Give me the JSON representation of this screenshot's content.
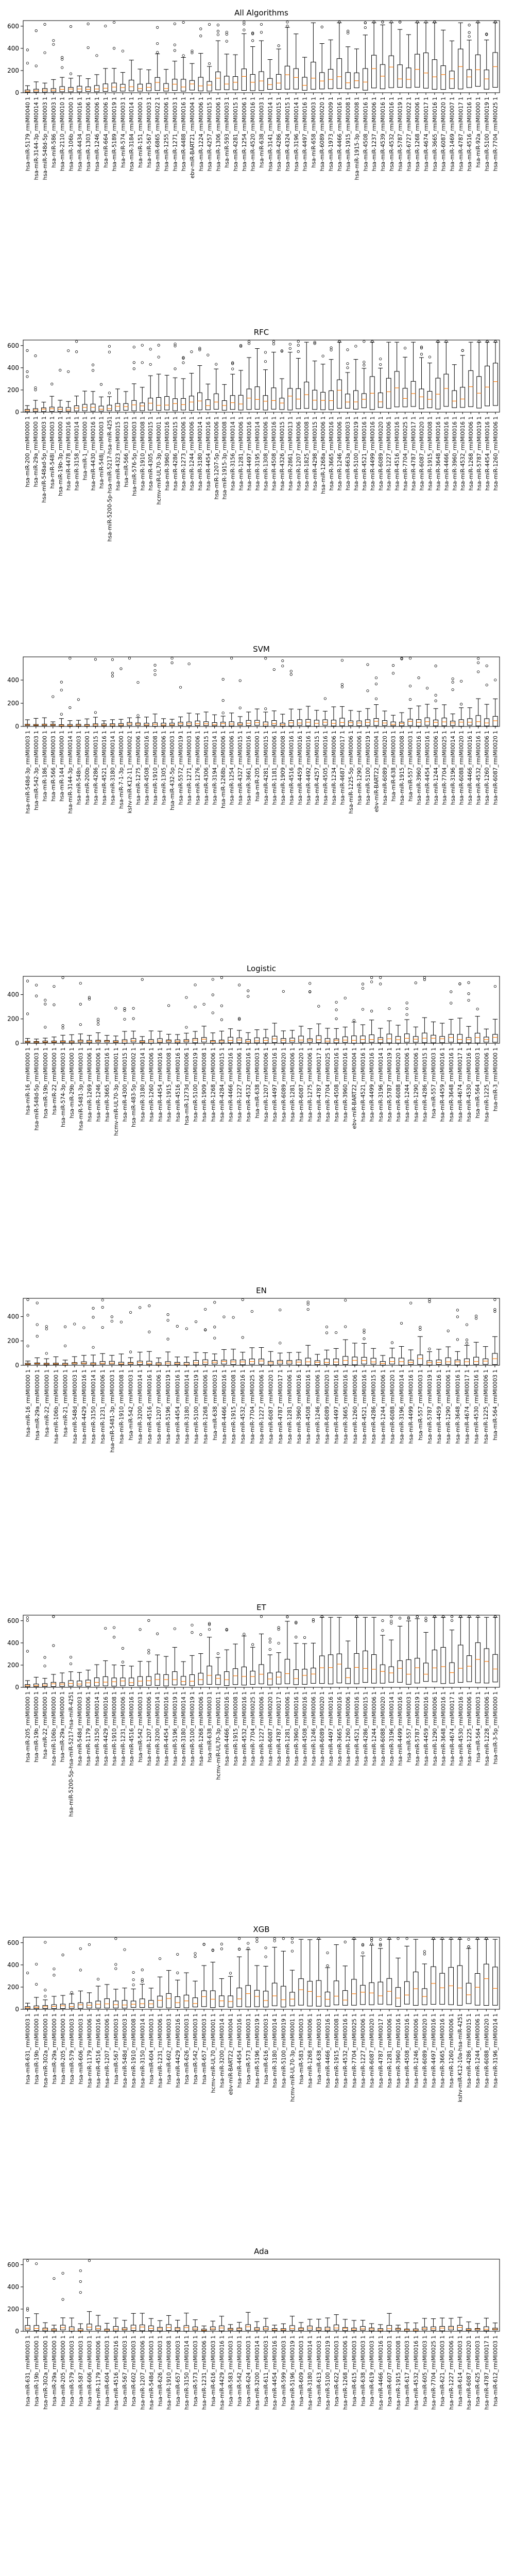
{
  "chart_data": [
    {
      "type": "box",
      "title": "All Algorithms",
      "ylim": [
        0,
        650
      ],
      "yticks": [
        0,
        200,
        400,
        600
      ],
      "categories": [
        "hsa-miR-5179_rmiMI0040 1",
        "hsa-miR-3144-3p_rmiMI0014 1",
        "hsa-miR-548d-5p_rmiMI0003 1",
        "hsa-miR-586_rmiMI0003 1",
        "hsa-miR-2110_rmiMI0010 1",
        "hsa-miR-106b_rmiMI0000 1",
        "hsa-miR-4434_rmiMI0016 1",
        "hsa-miR-1303_rmiMI0006 1",
        "hsa-miR-1246_rmiMI0006 1",
        "hsa-miR-664_rmiMI0006 1",
        "hsa-miR-5189_rmiMI0019 1",
        "hsa-miR-574_rmiMI0003 1",
        "hsa-miR-3184_rmiMI0014 1",
        "hsa-miR-151_rmiMI0000 1",
        "hsa-miR-567_rmiMI0003 1",
        "hsa-miR-6865_rmiMI0022 1",
        "hsa-miR-1255_rmiMI0006 1",
        "hsa-miR-1271_rmiMI0003 1",
        "hsa-miR-4488_rmiMI0016 1",
        "ebv-miR-BART21_rmiMI0004 1",
        "hsa-miR-1224_rmiMI0006 1",
        "hsa-miR-4257_rmiMI0015 1",
        "hsa-miR-1306_rmiMI0006 1",
        "hsa-miR-593_rmiMI0003 1",
        "hsa-miR-4281_rmiMI0015 1",
        "hsa-miR-1254_rmiMI0006 1",
        "hsa-miR-4520_rmiMI0016 1",
        "hsa-miR-638_rmiMI0003 1",
        "hsa-miR-3141_rmiMI0014 1",
        "hsa-miR-4286_rmiMI0015 1",
        "hsa-miR-4324_rmiMI0015 1",
        "hsa-miR-3196_rmiMI0014 1",
        "hsa-miR-4497_rmiMI0016 1",
        "hsa-miR-658_rmiMI0003 1",
        "hsa-miR-6089_rmiMI0020 1",
        "hsa-miR-1973_rmiMI0009 1",
        "hsa-miR-4466_rmiMI0016 1",
        "hsa-miR-1915_rmiMI0008 1",
        "hsa-miR-1915-3p_rmiMI0008 1",
        "hsa-miR-4508_rmiMI0016 1",
        "hsa-miR-1237_rmiMI0006 1",
        "hsa-miR-4539_rmiMI0016 1",
        "hsa-miR-4532_rmiMI0016 1",
        "hsa-miR-5787_rmiMI0019 1",
        "hsa-miR-6727_rmiMI0022 1",
        "hsa-miR-1268_rmiMI0006 1",
        "hsa-miR-4674_rmiMI0017 1",
        "hsa-miR-3665_rmiMI0016 1",
        "hsa-miR-6087_rmiMI0020 1",
        "hsa-miR-1469_rmiMI0007 1",
        "hsa-miR-4787_rmiMI0017 1",
        "hsa-miR-4516_rmiMI0016 1",
        "hsa-miR-92a_rmiMI0000 1",
        "hsa-miR-5100_rmiMI0019 1",
        "hsa-miR-7704_rmiMI0025 1"
      ]
    },
    {
      "type": "box",
      "title": "RFC",
      "ylim": [
        0,
        650
      ],
      "yticks": [
        0,
        200,
        400,
        600
      ],
      "categories": [
        "hsa-miR-200_rmiMI0000 1",
        "hsa-miR-29a_rmiMI0000 1",
        "hsa-miR-548ad-5p_rmiMI0003 1",
        "hsa-miR-548l_rmiMI0003 1",
        "hsa-miR-19b-3p_rmiMI0000 1",
        "hsa-miR-4478_rmiMI0016 1",
        "hsa-miR-3158_rmiMI0014 1",
        "hsa-miR-1_rmiMI0000 1",
        "hsa-miR-4430_rmiMI0016 1",
        "hsa-miR-548j_rmiMI0003 1",
        "hsa-miR-5200-5p-hsa-miR-5217-hsa-miR-4251",
        "hsa-miR-4323_rmiMI0015 1",
        "hsa-miR-566_rmiMI0003 1",
        "hsa-miR-576-5p_rmiMI0003 1",
        "hsa-miR-1910_rmiMI0008 1",
        "hsa-miR-4305_rmiMI0015 1",
        "hcmv-miR-UL70-3p_rmiMI0001 1",
        "hsa-miR-3960_rmiMI0016 1",
        "hsa-miR-4286_rmiMI0015 1",
        "hsa-miR-1273_rmiMI0006 1",
        "hsa-miR-1244_rmiMI0006 1",
        "hsa-miR-3180_rmiMI0014 1",
        "hsa-miR-4454_rmiMI0016 1",
        "hsa-miR-1207-5p_rmiMI0006 1",
        "hsa-miR-1915-3p_rmiMI0008 1",
        "hsa-miR-3156_rmiMI0014 1",
        "hsa-miR-1281_rmiMI0006 1",
        "hsa-miR-4497_rmiMI0016 1",
        "hsa-miR-3195_rmiMI0014 1",
        "hsa-miR-1308_rmiMI0006 1",
        "hsa-miR-4508_rmiMI0016 1",
        "hsa-miR-4326_rmiMI0015 1",
        "hsa-miR-2861_rmiMI0013 1",
        "hsa-miR-1207_rmiMI0006 1",
        "hsa-miR-1825_rmiMI0008 1",
        "hsa-miR-4298_rmiMI0015 1",
        "hsa-miR-1268a_rmiMI0006 1",
        "hsa-miR-3665_rmiMI0016 1",
        "hsa-miR-1246_rmiMI0006 1",
        "hsa-miR-663a_rmiMI0003 1",
        "hsa-miR-5100_rmiMI0019 1",
        "hsa-miR-4521_rmiMI0016 1",
        "hsa-miR-4499_rmiMI0016 1",
        "hsa-miR-6089_rmiMI0020 1",
        "hsa-miR-1227_rmiMI0006 1",
        "hsa-miR-4516_rmiMI0016 1",
        "hsa-miR-7704_rmiMI0025 1",
        "hsa-miR-4787_rmiMI0017 1",
        "hsa-miR-6087_rmiMI0020 1",
        "hsa-miR-1915_rmiMI0008 1",
        "hsa-miR-3648_rmiMI0016 1",
        "hsa-miR-4466_rmiMI0016 1",
        "hsa-miR-3960_rmiMI0016 1",
        "hsa-miR-4532_rmiMI0016 1",
        "hsa-miR-1268_rmiMI0006 1",
        "hsa-miR-5787_rmiMI0019 1",
        "hsa-miR-4454_rmiMI0016 1",
        "hsa-miR-1260_rmiMI0006 1"
      ]
    },
    {
      "type": "box",
      "title": "SVM",
      "ylim": [
        0,
        600
      ],
      "yticks": [
        0,
        200,
        400
      ],
      "categories": [
        "hsa-miR-548d-3p_rmiMI0003 1",
        "hsa-miR-542-3p_rmiMI0003 1",
        "hsa-miR-186_rmiMI0000 1",
        "hsa-miR-566_rmiMI0003 1",
        "hsa-miR-144_rmiMI0000 1",
        "hsa-miR-3144-3p_rmiMI0014 1",
        "hsa-miR-548n_rmiMI0003 1",
        "hsa-miR-200b_rmiMI0000 1",
        "hsa-miR-4286_rmiMI0015 1",
        "hsa-miR-4521_rmiMI0016 1",
        "hsa-miR-3180_rmiMI0014 1",
        "hsa-miR-7-1-3p_rmiMI0000 1",
        "kshv-miR-K12-11_rmiMI0002 1",
        "hsa-miR-1275_rmiMI0006 1",
        "hsa-miR-4508_rmiMI0016 1",
        "hsa-miR-1910_rmiMI0008 1",
        "hsa-miR-1305_rmiMI0006 1",
        "hsa-miR-432-5p_rmiMI0003 1",
        "hsa-miR-5572_rmiMI0019 1",
        "hsa-miR-1271_rmiMI0003 1",
        "hsa-miR-1276_rmiMI0006 1",
        "hsa-miR-4306_rmiMI0015 1",
        "hsa-miR-3194_rmiMI0014 1",
        "hsa-miR-1268b_rmiMI0006 1",
        "hsa-miR-1254_rmiMI0006 1",
        "hsa-miR-4327_rmiMI0015 1",
        "hsa-miR-3661_rmiMI0016 1",
        "hsa-miR-205_rmiMI0000 1",
        "hsa-miR-4281_rmiMI0015 1",
        "hsa-miR-1181_rmiMI0006 1",
        "hsa-miR-1909_rmiMI0008 1",
        "hsa-miR-4516_rmiMI0016 1",
        "hsa-miR-4459_rmiMI0016 1",
        "hsa-miR-4492_rmiMI0016 1",
        "hsa-miR-4257_rmiMI0015 1",
        "hsa-miR-4505_rmiMI0016 1",
        "hsa-miR-1234_rmiMI0006 1",
        "hsa-miR-4687_rmiMI0017 1",
        "hsa-miR-1225-5p_rmiMI0006 1",
        "hsa-miR-1290_rmiMI0006 1",
        "hsa-miR-5100_rmiMI0019 1",
        "ebv-miR-BART22_rmiMI0004 1",
        "hsa-miR-6089_rmiMI0020 1",
        "hsa-miR-638_rmiMI0003 1",
        "hsa-miR-1915_rmiMI0008 1",
        "hsa-miR-557_rmiMI0003 1",
        "hsa-miR-3960_rmiMI0016 1",
        "hsa-miR-4454_rmiMI0016 1",
        "hsa-miR-1244_rmiMI0006 1",
        "hsa-miR-7704_rmiMI0025 1",
        "hsa-miR-3196_rmiMI0014 1",
        "hsa-miR-6088_rmiMI0020 1",
        "hsa-miR-4466_rmiMI0016 1",
        "hsa-miR-4532_rmiMI0016 1",
        "hsa-miR-1260_rmiMI0006 1",
        "hsa-miR-6087_rmiMI0020 1"
      ]
    },
    {
      "type": "box",
      "title": "Logistic",
      "ylim": [
        0,
        550
      ],
      "yticks": [
        0,
        200,
        400
      ],
      "categories": [
        "hsa-miR-16_rmiMI0000 1",
        "hsa-miR-548d-5p_rmiMI0003 1",
        "hsa-miR-19b_rmiMI0000 1",
        "hsa-miR-22_rmiMI0000 1",
        "hsa-miR-574-3p_rmiMI0003 1",
        "hsa-miR-29b_rmiMI0000 1",
        "hsa-miR-5481-3p_rmiMI0003 1",
        "hsa-miR-1269_rmiMI0006 1",
        "hsa-miR-1246_rmiMI0006 1",
        "hsa-miR-3665_rmiMI0016 1",
        "hcmv-miR-UL70-3p_rmiMI0001 1",
        "hsa-miR-4300_rmiMI0015 1",
        "hsa-miR-483-5p_rmiMI0002 1",
        "hsa-miR-3180_rmiMI0014 1",
        "hsa-miR-1260_rmiMI0006 1",
        "hsa-miR-4454_rmiMI0016 1",
        "hsa-miR-1915_rmiMI0008 1",
        "hsa-miR-4516_rmiMI0016 1",
        "hsa-miR-1273d_rmiMI0006 1",
        "hsa-miR-5100_rmiMI0019 1",
        "hsa-miR-1909_rmiMI0008 1",
        "hsa-miR-1268_rmiMI0006 1",
        "hsa-miR-4284_rmiMI0015 1",
        "hsa-miR-4466_rmiMI0016 1",
        "hsa-miR-1227_rmiMI0006 1",
        "hsa-miR-4532_rmiMI0016 1",
        "hsa-miR-638_rmiMI0003 1",
        "hsa-miR-1207_rmiMI0006 1",
        "hsa-miR-4497_rmiMI0016 1",
        "hsa-miR-6089_rmiMI0020 1",
        "hsa-miR-1281_rmiMI0006 1",
        "hsa-miR-6087_rmiMI0020 1",
        "hsa-miR-1275_rmiMI0006 1",
        "hsa-miR-4787_rmiMI0017 1",
        "hsa-miR-7704_rmiMI0025 1",
        "hsa-miR-4508_rmiMI0016 1",
        "hsa-miR-3960_rmiMI0016 1",
        "ebv-miR-BART22_rmiMI0004 1",
        "hsa-miR-4521_rmiMI0016 1",
        "hsa-miR-4499_rmiMI0016 1",
        "hsa-miR-3196_rmiMI0014 1",
        "hsa-miR-5787_rmiMI0019 1",
        "hsa-miR-6088_rmiMI0020 1",
        "hsa-miR-1244_rmiMI0006 1",
        "hsa-miR-1290_rmiMI0006 1",
        "hsa-miR-4286_rmiMI0015 1",
        "hsa-miR-557_rmiMI0003 1",
        "hsa-miR-4459_rmiMI0016 1",
        "hsa-miR-3648_rmiMI0016 1",
        "hsa-miR-4674_rmiMI0017 1",
        "hsa-miR-4530_rmiMI0016 1",
        "hsa-miR-564_rmiMI0003 1",
        "hsa-miR-1225_rmiMI0006 1",
        "hsa-miR-3_rmiMI0000 1"
      ]
    },
    {
      "type": "box",
      "title": "EN",
      "ylim": [
        0,
        550
      ],
      "yticks": [
        0,
        200,
        400
      ],
      "categories": [
        "hsa-miR-16_rmiMI0000 1",
        "hsa-miR-29a_rmiMI0000 1",
        "hsa-miR-22_rmiMI0000 1",
        "hsa-miR-106b_rmiMI0000 1",
        "hsa-miR-21_rmiMI0000 1",
        "hsa-miR-548d_rmiMI0003 1",
        "hsa-miR-4429_rmiMI0016 1",
        "hsa-miR-3150_rmiMI0014 1",
        "hsa-miR-1231_rmiMI0006 1",
        "hsa-miR-5481-3p_rmiMI0003 1",
        "hsa-miR-1910_rmiMI0008 1",
        "hsa-miR-542_rmiMI0003 1",
        "hsa-miR-3200_rmiMI0014 1",
        "hsa-miR-4516_rmiMI0016 1",
        "hsa-miR-1207_rmiMI0006 1",
        "hsa-miR-5196_rmiMI0019 1",
        "hsa-miR-4454_rmiMI0016 1",
        "hsa-miR-3180_rmiMI0014 1",
        "hsa-miR-5100_rmiMI0019 1",
        "hsa-miR-1268_rmiMI0006 1",
        "hsa-miR-638_rmiMI0003 1",
        "hsa-miR-4466_rmiMI0016 1",
        "hsa-miR-1915_rmiMI0008 1",
        "hsa-miR-4532_rmiMI0016 1",
        "hsa-miR-7704_rmiMI0025 1",
        "hsa-miR-1227_rmiMI0006 1",
        "hsa-miR-6087_rmiMI0020 1",
        "hsa-miR-4787_rmiMI0017 1",
        "hsa-miR-1281_rmiMI0006 1",
        "hsa-miR-3960_rmiMI0016 1",
        "hsa-miR-4508_rmiMI0016 1",
        "hsa-miR-1246_rmiMI0006 1",
        "hsa-miR-6089_rmiMI0020 1",
        "hsa-miR-4497_rmiMI0016 1",
        "hsa-miR-3665_rmiMI0016 1",
        "hsa-miR-1260_rmiMI0006 1",
        "hsa-miR-4521_rmiMI0016 1",
        "hsa-miR-4286_rmiMI0015 1",
        "hsa-miR-1244_rmiMI0006 1",
        "hsa-miR-6088_rmiMI0020 1",
        "hsa-miR-3196_rmiMI0014 1",
        "hsa-miR-4499_rmiMI0016 1",
        "hsa-miR-557_rmiMI0003 1",
        "hsa-miR-5787_rmiMI0019 1",
        "hsa-miR-4459_rmiMI0016 1",
        "hsa-miR-1290_rmiMI0006 1",
        "hsa-miR-3648_rmiMI0016 1",
        "hsa-miR-4674_rmiMI0017 1",
        "hsa-miR-4530_rmiMI0016 1",
        "hsa-miR-1225_rmiMI0006 1",
        "hsa-miR-564_rmiMI0003 1"
      ]
    },
    {
      "type": "box",
      "title": "ET",
      "ylim": [
        0,
        650
      ],
      "yticks": [
        0,
        200,
        400,
        600
      ],
      "categories": [
        "hsa-miR-205_rmiMI0000 1",
        "hsa-miR-19b_rmiMI0000 1",
        "hsa-miR-22_rmiMI0000 1",
        "hsa-miR-106b_rmiMI0000 1",
        "hsa-miR-29a_rmiMI0000 1",
        "hsa-miR-5200-5p-hsa-miR-5217-hsa-miR-4251",
        "hsa-miR-548d_rmiMI0003 1",
        "hsa-miR-1179_rmiMI0006 1",
        "hsa-miR-3150_rmiMI0014 1",
        "hsa-miR-4429_rmiMI0016 1",
        "hsa-miR-1910_rmiMI0008 1",
        "hsa-miR-1231_rmiMI0006 1",
        "hsa-miR-4516_rmiMI0016 1",
        "hsa-miR-542_rmiMI0003 1",
        "hsa-miR-1207_rmiMI0006 1",
        "hsa-miR-3200_rmiMI0014 1",
        "hsa-miR-4454_rmiMI0016 1",
        "hsa-miR-5196_rmiMI0019 1",
        "hsa-miR-3180_rmiMI0014 1",
        "hsa-miR-5100_rmiMI0019 1",
        "hsa-miR-1268_rmiMI0006 1",
        "hsa-miR-638_rmiMI0003 1",
        "hcmv-miR-UL70-3p_rmiMI0001 1",
        "hsa-miR-4466_rmiMI0016 1",
        "hsa-miR-1915_rmiMI0008 1",
        "hsa-miR-4532_rmiMI0016 1",
        "hsa-miR-7704_rmiMI0025 1",
        "hsa-miR-1227_rmiMI0006 1",
        "hsa-miR-6087_rmiMI0020 1",
        "hsa-miR-4787_rmiMI0017 1",
        "hsa-miR-1281_rmiMI0006 1",
        "hsa-miR-3960_rmiMI0016 1",
        "hsa-miR-4508_rmiMI0016 1",
        "hsa-miR-1246_rmiMI0006 1",
        "hsa-miR-6089_rmiMI0020 1",
        "hsa-miR-4497_rmiMI0016 1",
        "hsa-miR-3665_rmiMI0016 1",
        "hsa-miR-1260_rmiMI0006 1",
        "hsa-miR-4521_rmiMI0016 1",
        "hsa-miR-4286_rmiMI0015 1",
        "hsa-miR-1244_rmiMI0006 1",
        "hsa-miR-6088_rmiMI0020 1",
        "hsa-miR-3196_rmiMI0014 1",
        "hsa-miR-4499_rmiMI0016 1",
        "hsa-miR-557_rmiMI0003 1",
        "hsa-miR-5787_rmiMI0019 1",
        "hsa-miR-4459_rmiMI0016 1",
        "hsa-miR-1290_rmiMI0006 1",
        "hsa-miR-3648_rmiMI0016 1",
        "hsa-miR-4674_rmiMI0017 1",
        "hsa-miR-4530_rmiMI0016 1",
        "hsa-miR-1225_rmiMI0006 1",
        "hsa-miR-564_rmiMI0003 1",
        "hsa-miR-1228_rmiMI0006 1",
        "hsa-miR-3-5p_rmiMI0000 1"
      ]
    },
    {
      "type": "box",
      "title": "XGB",
      "ylim": [
        0,
        650
      ],
      "yticks": [
        0,
        200,
        400,
        600
      ],
      "categories": [
        "hsa-miR-631_rmiMI0003 1",
        "hsa-miR-19b_rmiMI0000 1",
        "hsa-miR-302a_rmiMI0000 1",
        "hsa-miR-29a_rmiMI0000 1",
        "hsa-miR-205_rmiMI0000 1",
        "hsa-miR-579_rmiMI0003 1",
        "hsa-miR-606_rmiMI0003 1",
        "hsa-miR-1179_rmiMI0006 1",
        "hsa-miR-4516_rmiMI0016 1",
        "hsa-miR-1207_rmiMI0006 1",
        "hsa-miR-567_rmiMI0003 1",
        "hsa-miR-548d_rmiMI0003 1",
        "hsa-miR-1910_rmiMI0008 1",
        "hsa-miR-3150_rmiMI0014 1",
        "hsa-miR-604_rmiMI0003 1",
        "hsa-miR-1231_rmiMI0006 1",
        "hsa-miR-602_rmiMI0003 1",
        "hsa-miR-4429_rmiMI0016 1",
        "hsa-miR-626_rmiMI0003 1",
        "hsa-miR-542_rmiMI0003 1",
        "hsa-miR-657_rmiMI0003 1",
        "hcmv-miR-UL70_rmiMI0001 1",
        "hsa-miR-3200_rmiMI0014 1",
        "ebv-miR-BART22_rmiMI0004 1",
        "hsa-miR-4454_rmiMI0016 1",
        "hsa-miR-573_rmiMI0003 1",
        "hsa-miR-5196_rmiMI0019 1",
        "hsa-miR-616_rmiMI0003 1",
        "hsa-miR-3180_rmiMI0014 1",
        "hsa-miR-5100_rmiMI0019 1",
        "hcmv-miR-UL70-3p_rmiMI0001 1",
        "hsa-miR-583_rmiMI0003 1",
        "hsa-miR-1268_rmiMI0006 1",
        "hsa-miR-638_rmiMI0003 1",
        "hsa-miR-4466_rmiMI0016 1",
        "hsa-miR-1915_rmiMI0008 1",
        "hsa-miR-4532_rmiMI0016 1",
        "hsa-miR-7704_rmiMI0025 1",
        "hsa-miR-1227_rmiMI0006 1",
        "hsa-miR-6087_rmiMI0020 1",
        "hsa-miR-4787_rmiMI0017 1",
        "hsa-miR-1281_rmiMI0006 1",
        "hsa-miR-3960_rmiMI0016 1",
        "hsa-miR-4508_rmiMI0016 1",
        "hsa-miR-1246_rmiMI0006 1",
        "hsa-miR-6089_rmiMI0020 1",
        "hsa-miR-4497_rmiMI0016 1",
        "hsa-miR-3665_rmiMI0016 1",
        "hsa-miR-1260_rmiMI0006 1",
        "kshv-miR-K12-10a-hsa-miR-4251",
        "hsa-miR-4286_rmiMI0015 1",
        "hsa-miR-1244_rmiMI0006 1",
        "hsa-miR-6088_rmiMI0020 1",
        "hsa-miR-3196_rmiMI0014 1"
      ]
    },
    {
      "type": "box",
      "title": "Ada",
      "ylim": [
        0,
        650
      ],
      "yticks": [
        0,
        200,
        400,
        600
      ],
      "categories": [
        "hsa-miR-631_rmiMI0003 1",
        "hsa-miR-19b_rmiMI0000 1",
        "hsa-miR-302a_rmiMI0000 1",
        "hsa-miR-29a_rmiMI0000 1",
        "hsa-miR-205_rmiMI0000 1",
        "hsa-miR-579_rmiMI0003 1",
        "hsa-miR-587_rmiMI0003 1",
        "hsa-miR-606_rmiMI0003 1",
        "hsa-miR-1179_rmiMI0006 1",
        "hsa-miR-604_rmiMI0003 1",
        "hsa-miR-4516_rmiMI0016 1",
        "hsa-miR-567_rmiMI0003 1",
        "hsa-miR-602_rmiMI0003 1",
        "hsa-miR-1207_rmiMI0006 1",
        "hsa-miR-548d_rmiMI0003 1",
        "hsa-miR-626_rmiMI0003 1",
        "hsa-miR-1910_rmiMI0008 1",
        "hsa-miR-657_rmiMI0003 1",
        "hsa-miR-3150_rmiMI0014 1",
        "hsa-miR-573_rmiMI0003 1",
        "hsa-miR-1231_rmiMI0006 1",
        "hsa-miR-616_rmiMI0003 1",
        "hsa-miR-4429_rmiMI0016 1",
        "hsa-miR-583_rmiMI0003 1",
        "hsa-miR-542_rmiMI0003 1",
        "hsa-miR-624_rmiMI0003 1",
        "hsa-miR-3200_rmiMI0014 1",
        "hsa-miR-611_rmiMI0003 1",
        "hsa-miR-4454_rmiMI0016 1",
        "hsa-miR-599_rmiMI0003 1",
        "hsa-miR-5196_rmiMI0019 1",
        "hsa-miR-609_rmiMI0003 1",
        "hsa-miR-3180_rmiMI0014 1",
        "hsa-miR-613_rmiMI0003 1",
        "hsa-miR-5100_rmiMI0019 1",
        "hsa-miR-622_rmiMI0003 1",
        "hsa-miR-1268_rmiMI0006 1",
        "hsa-miR-615_rmiMI0003 1",
        "hsa-miR-638_rmiMI0003 1",
        "hsa-miR-619_rmiMI0003 1",
        "hsa-miR-4466_rmiMI0016 1",
        "hsa-miR-607_rmiMI0003 1",
        "hsa-miR-1915_rmiMI0008 1",
        "hsa-miR-617_rmiMI0003 1",
        "hsa-miR-4532_rmiMI0016 1",
        "hsa-miR-605_rmiMI0003 1",
        "hsa-miR-7704_rmiMI0025 1",
        "hsa-miR-621_rmiMI0003 1",
        "hsa-miR-1227_rmiMI0006 1",
        "hsa-miR-614_rmiMI0003 1",
        "hsa-miR-6087_rmiMI0020 1",
        "hsa-miR-625_rmiMI0003 1",
        "hsa-miR-4787_rmiMI0017 1",
        "hsa-miR-612_rmiMI0003 1"
      ]
    }
  ]
}
